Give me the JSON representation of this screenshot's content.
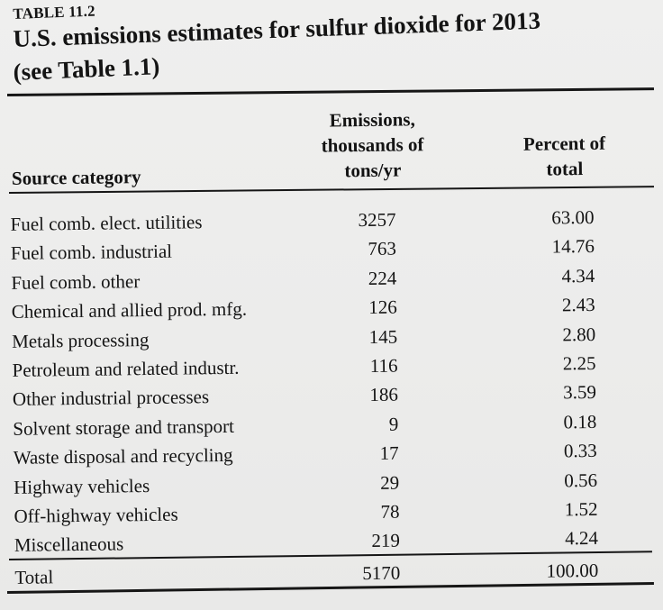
{
  "table_label": "TABLE 11.2",
  "title": "U.S. emissions estimates for sulfur dioxide for 2013",
  "subtitle": "(see Table 1.1)",
  "headers": {
    "source": "Source category",
    "emissions_line1": "Emissions,",
    "emissions_line2": "thousands of",
    "emissions_line3": "tons/yr",
    "percent_line1": "Percent of",
    "percent_line2": "total"
  },
  "rows": [
    {
      "category": "Fuel comb. elect. utilities",
      "emissions": "3257",
      "percent": "63.00"
    },
    {
      "category": "Fuel comb. industrial",
      "emissions": "763",
      "percent": "14.76"
    },
    {
      "category": "Fuel comb. other",
      "emissions": "224",
      "percent": "4.34"
    },
    {
      "category": "Chemical and allied prod. mfg.",
      "emissions": "126",
      "percent": "2.43"
    },
    {
      "category": "Metals processing",
      "emissions": "145",
      "percent": "2.80"
    },
    {
      "category": "Petroleum and related industr.",
      "emissions": "116",
      "percent": "2.25"
    },
    {
      "category": "Other industrial processes",
      "emissions": "186",
      "percent": "3.59"
    },
    {
      "category": "Solvent storage and transport",
      "emissions": "9",
      "percent": "0.18"
    },
    {
      "category": "Waste disposal and recycling",
      "emissions": "17",
      "percent": "0.33"
    },
    {
      "category": "Highway vehicles",
      "emissions": "29",
      "percent": "0.56"
    },
    {
      "category": "Off-highway vehicles",
      "emissions": "78",
      "percent": "1.52"
    },
    {
      "category": "Miscellaneous",
      "emissions": "219",
      "percent": "4.24"
    }
  ],
  "total": {
    "category": "Total",
    "emissions": "5170",
    "percent": "100.00"
  }
}
